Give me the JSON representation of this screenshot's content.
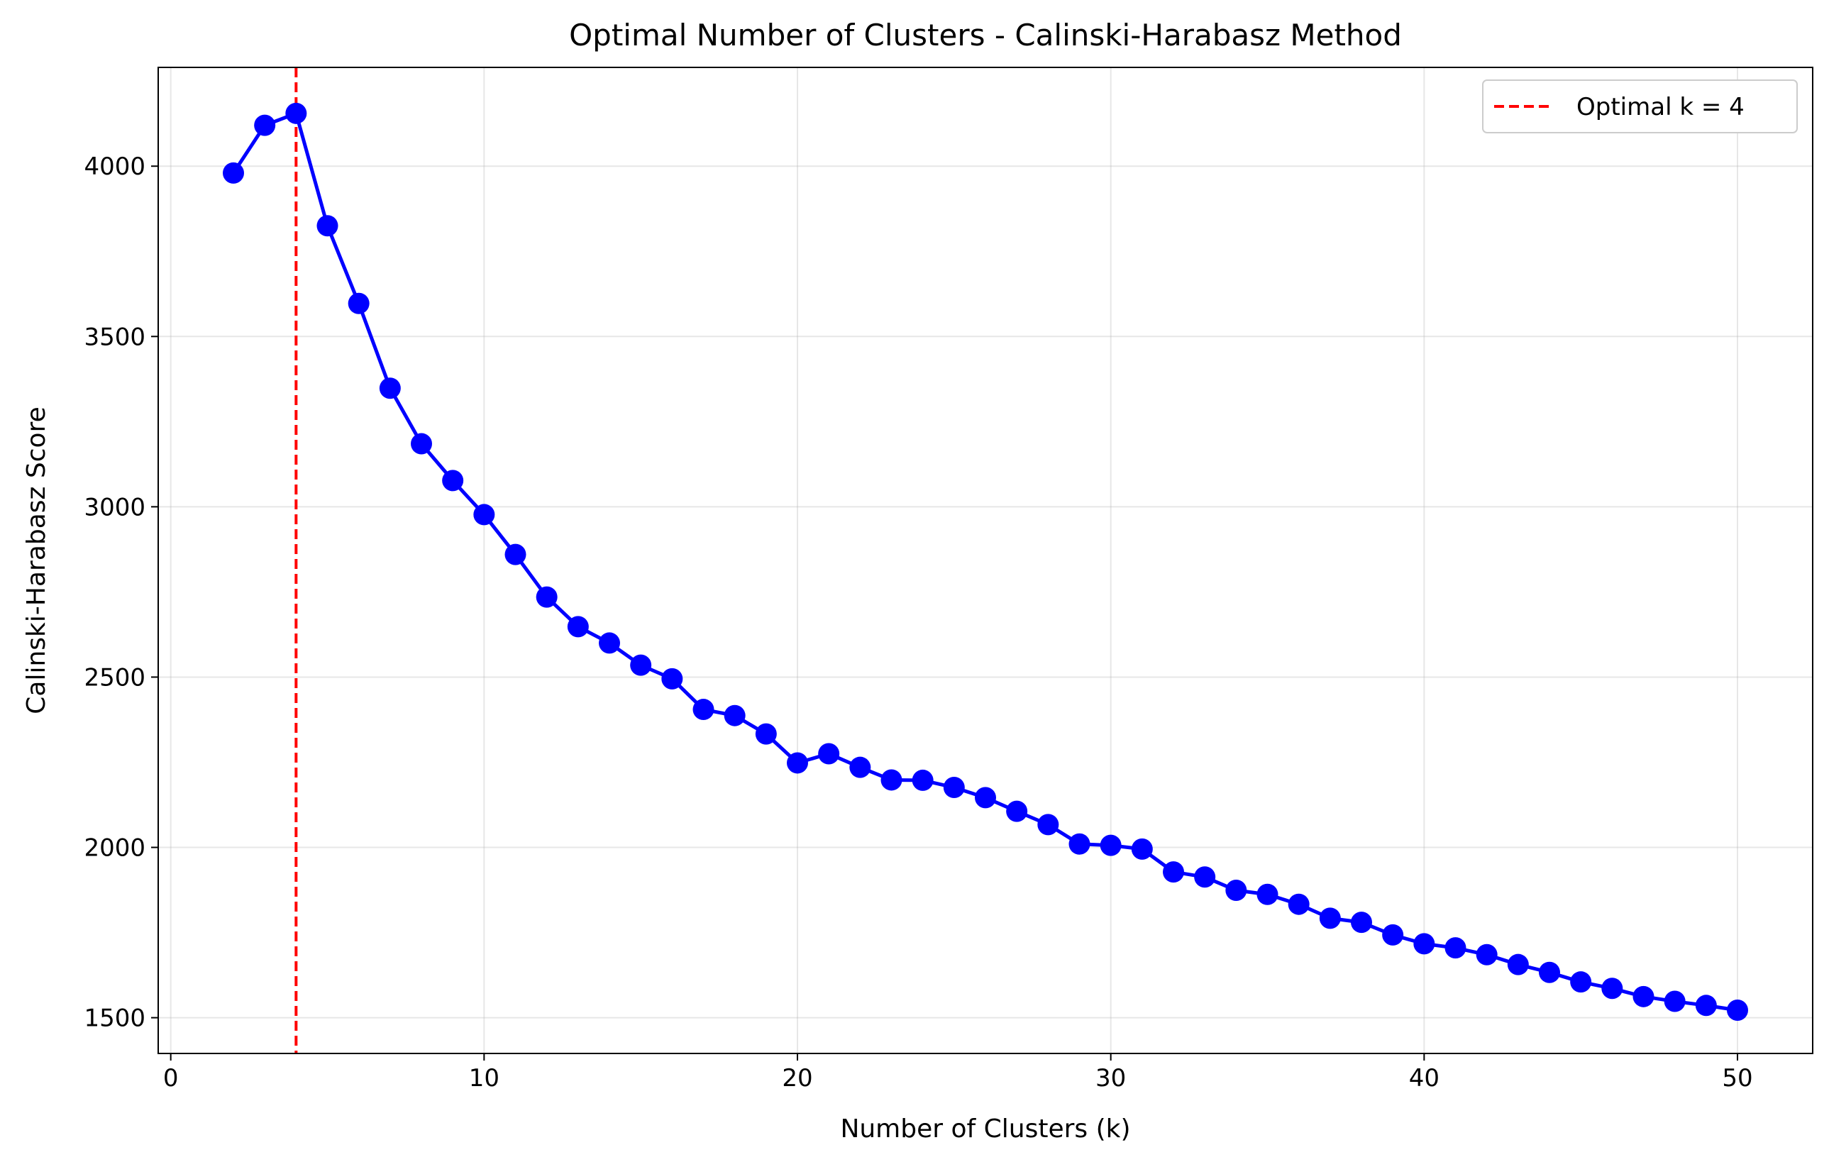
{
  "chart_data": {
    "type": "line",
    "title": "Optimal Number of Clusters - Calinski-Harabasz Method",
    "xlabel": "Number of Clusters (k)",
    "ylabel": "Calinski-Harabasz Score",
    "xlim": [
      -0.4,
      52.4
    ],
    "ylim": [
      1395,
      4290
    ],
    "xticks": [
      0,
      10,
      20,
      30,
      40,
      50
    ],
    "yticks": [
      1500,
      2000,
      2500,
      3000,
      3500,
      4000
    ],
    "grid": true,
    "legend_position": "top-right",
    "series": [
      {
        "name": "",
        "color": "#0000ff",
        "marker": "circle",
        "x": [
          2,
          3,
          4,
          5,
          6,
          7,
          8,
          9,
          10,
          11,
          12,
          13,
          14,
          15,
          16,
          17,
          18,
          19,
          20,
          21,
          22,
          23,
          24,
          25,
          26,
          27,
          28,
          29,
          30,
          31,
          32,
          33,
          34,
          35,
          36,
          37,
          38,
          39,
          40,
          41,
          42,
          43,
          44,
          45,
          46,
          47,
          48,
          49,
          50
        ],
        "y": [
          3980,
          4120,
          4155,
          3825,
          3597,
          3348,
          3185,
          3077,
          2977,
          2860,
          2735,
          2648,
          2600,
          2535,
          2495,
          2405,
          2387,
          2333,
          2248,
          2275,
          2235,
          2198,
          2197,
          2176,
          2146,
          2106,
          2067,
          2010,
          2006,
          1995,
          1928,
          1913,
          1874,
          1862,
          1833,
          1792,
          1780,
          1743,
          1717,
          1705,
          1685,
          1656,
          1633,
          1605,
          1586,
          1562,
          1548,
          1536,
          1522
        ]
      }
    ],
    "reference_lines": [
      {
        "axis": "x",
        "value": 4,
        "label": "Optimal k = 4",
        "color": "#ff0000",
        "style": "dashed"
      }
    ]
  }
}
